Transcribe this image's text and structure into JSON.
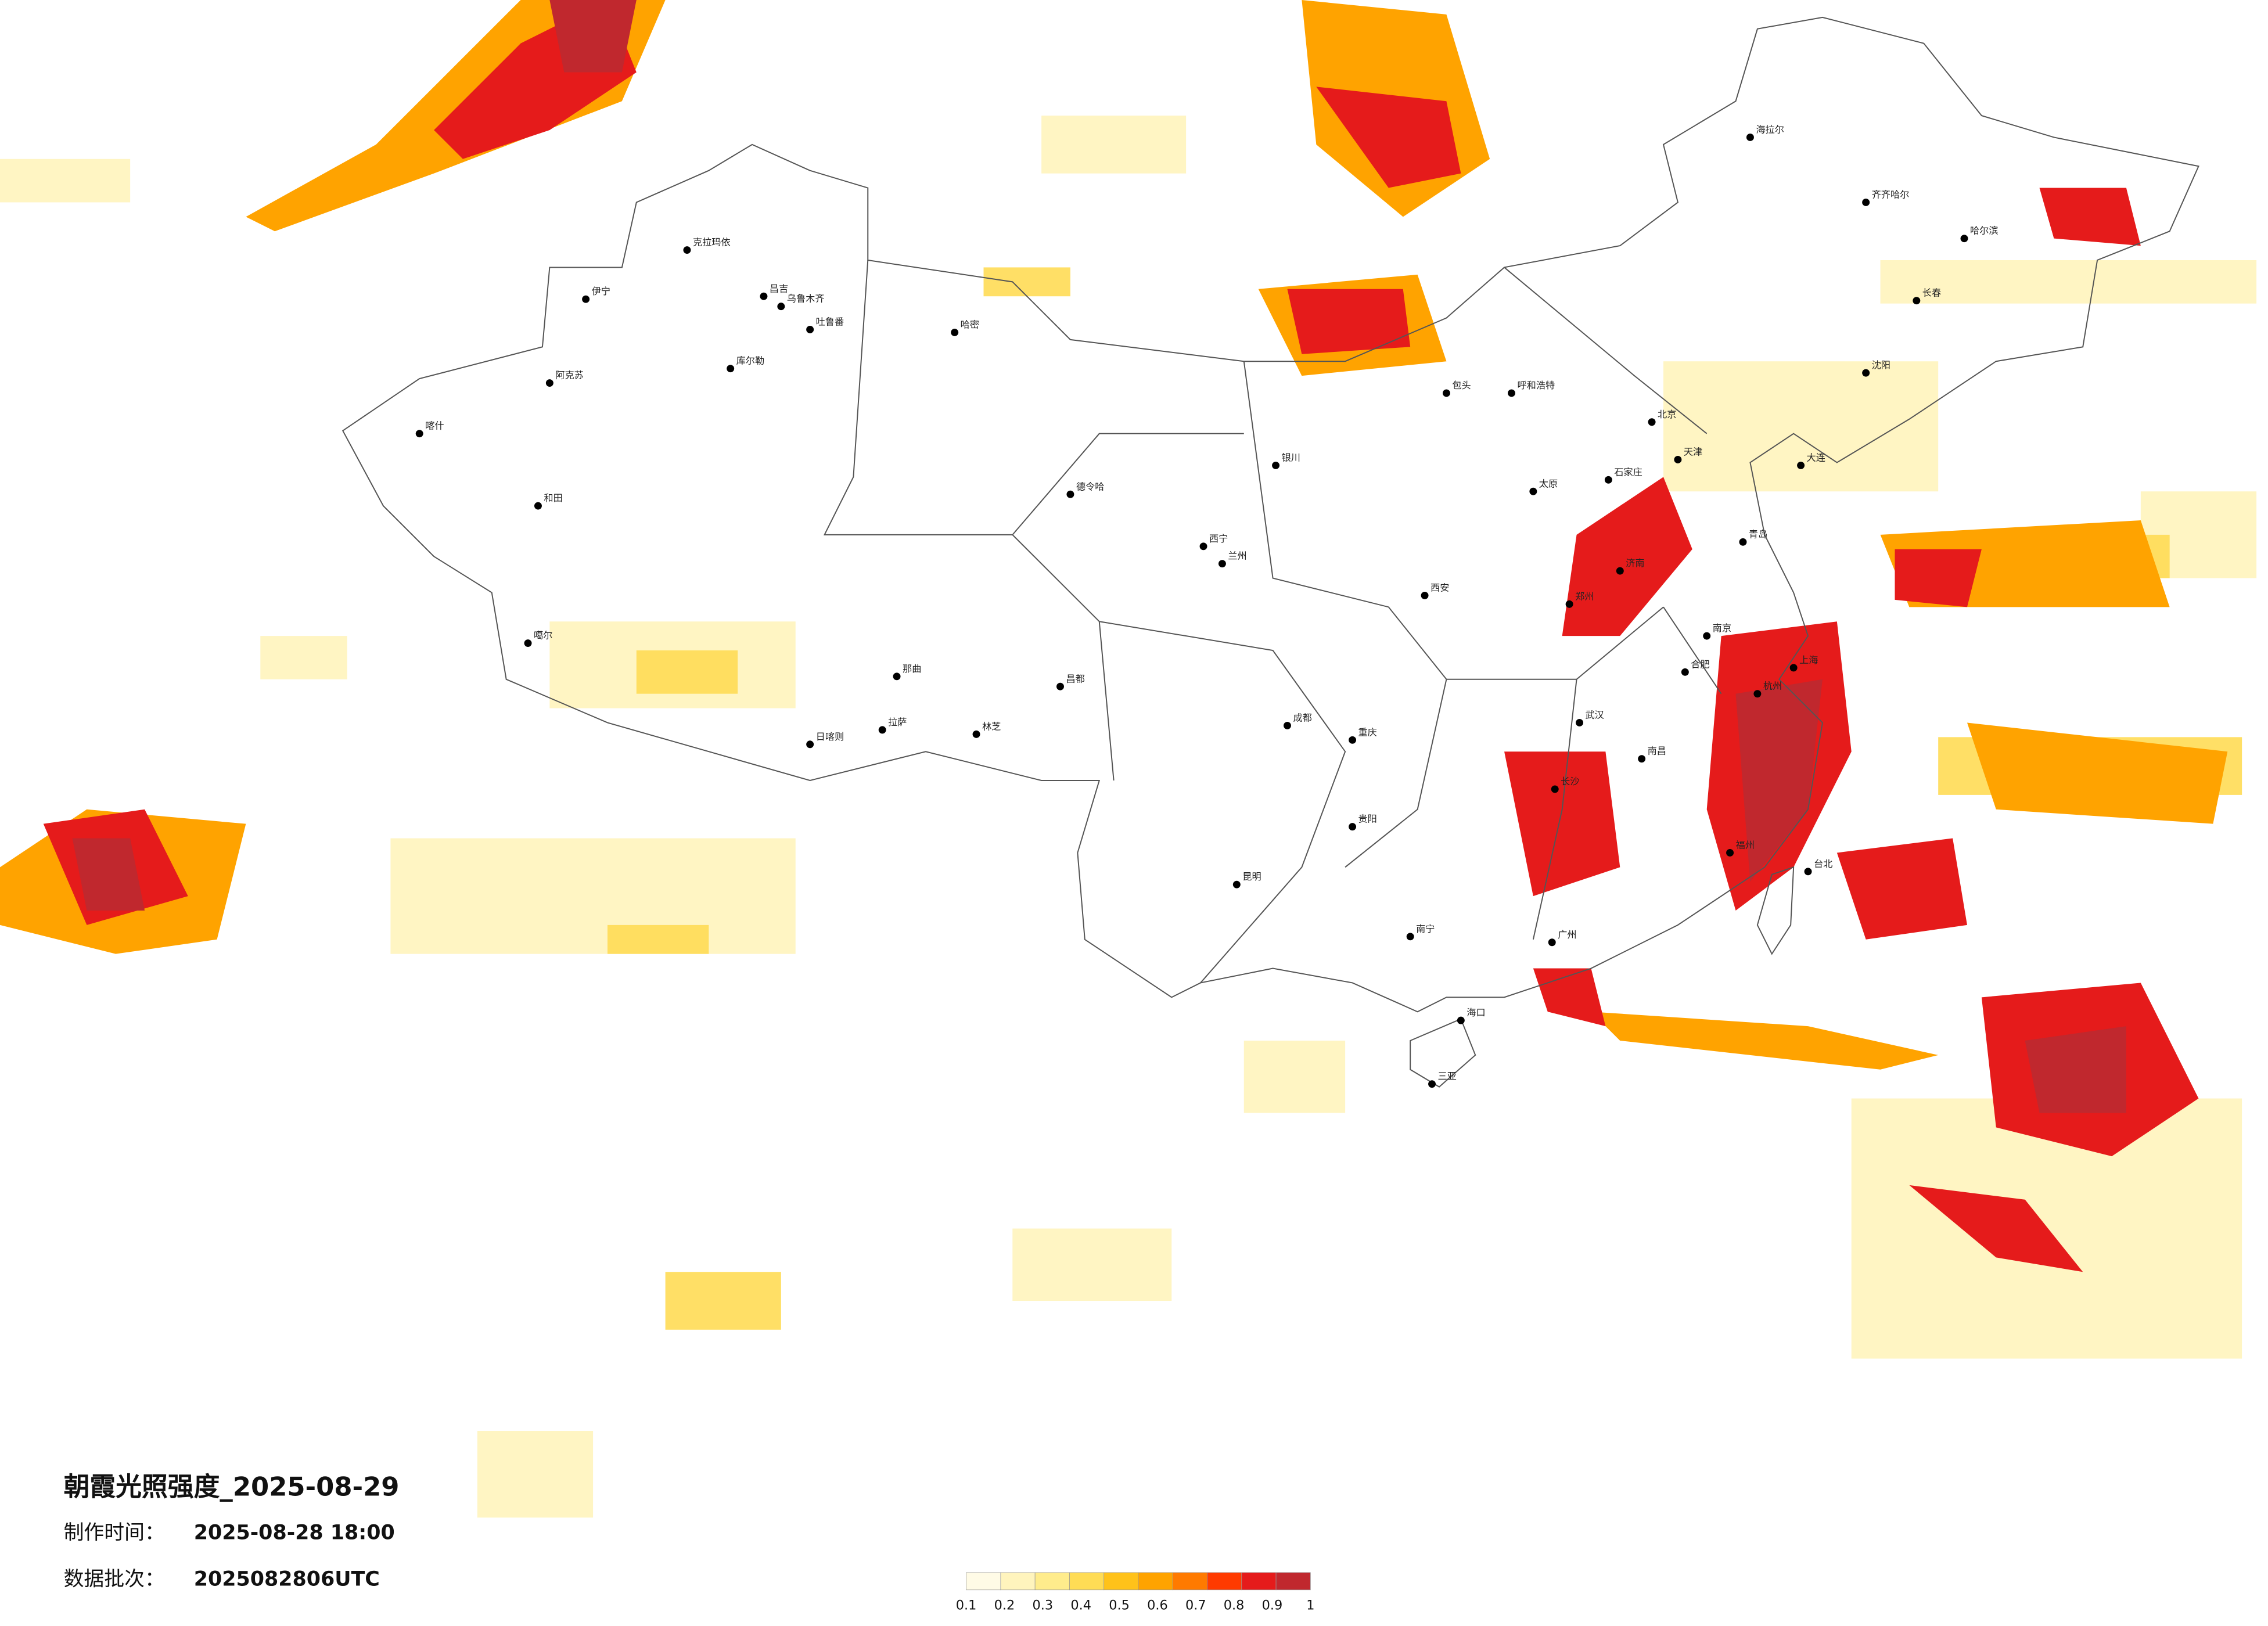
{
  "title": "朝霞光照强度_2025-08-29",
  "made_label": "制作时间：",
  "made_time": "2025-08-28 18:00",
  "batch_label": "数据批次：",
  "batch": "2025082806UTC",
  "colorbar": {
    "ticks": [
      0.1,
      0.2,
      0.3,
      0.4,
      0.5,
      0.6,
      0.7,
      0.8,
      0.9,
      1
    ],
    "colors": [
      "#fffbe6",
      "#fff4bd",
      "#ffec8c",
      "#ffdc55",
      "#ffc21a",
      "#ffa300",
      "#ff7a00",
      "#ff3a00",
      "#e51b1b",
      "#c0282e"
    ]
  },
  "cities": [
    "伊宁",
    "克拉玛依",
    "昌吉",
    "乌鲁木齐",
    "吐鲁番",
    "哈密",
    "库尔勒",
    "阿克苏",
    "喀什",
    "和田",
    "噶尔",
    "日喀则",
    "拉萨",
    "林芝",
    "那曲",
    "昌都",
    "德令哈",
    "西宁",
    "兰州",
    "银川",
    "包头",
    "呼和浩特",
    "海拉尔",
    "齐齐哈尔",
    "哈尔滨",
    "长春",
    "沈阳",
    "北京",
    "天津",
    "石家庄",
    "太原",
    "济南",
    "郑州",
    "西安",
    "成都",
    "重庆",
    "武汉",
    "长沙",
    "南昌",
    "杭州",
    "上海",
    "福州",
    "台北",
    "贵阳",
    "昆明",
    "南宁",
    "广州",
    "海口",
    "三亚",
    "大连",
    "青岛",
    "合肥",
    "南京"
  ]
}
